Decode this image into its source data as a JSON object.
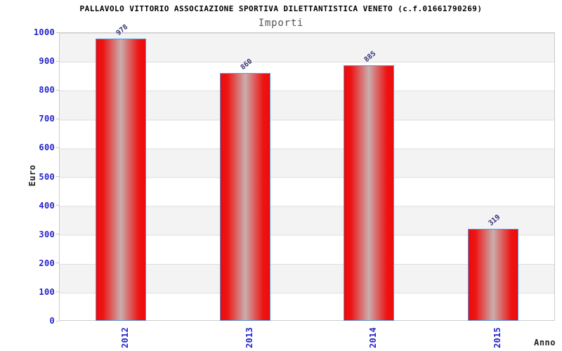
{
  "chart_data": {
    "type": "bar",
    "title": "PALLAVOLO VITTORIO ASSOCIAZIONE SPORTIVA DILETTANTISTICA VENETO (c.f.01661790269)",
    "subtitle": "Importi",
    "xlabel": "Anno",
    "ylabel": "Euro",
    "categories": [
      "2012",
      "2013",
      "2014",
      "2015"
    ],
    "values": [
      978,
      860,
      885,
      319
    ],
    "ylim": [
      0,
      1000
    ],
    "ytick_step": 100,
    "legend_position": "none",
    "grid": "horizontal alternating bands",
    "colors": {
      "bar_edge": "#ee0a0a",
      "bar_middle": "#c9aeae",
      "bar_border": "#5599dd",
      "axis_tick_label": "#2222cc",
      "value_label": "#333377",
      "band_gray": "#f3f3f3",
      "gridline": "#dddddd",
      "plot_border": "#cccccc",
      "title_color": "#000000",
      "subtitle_color": "#555555",
      "axis_name_color": "#222222"
    }
  }
}
